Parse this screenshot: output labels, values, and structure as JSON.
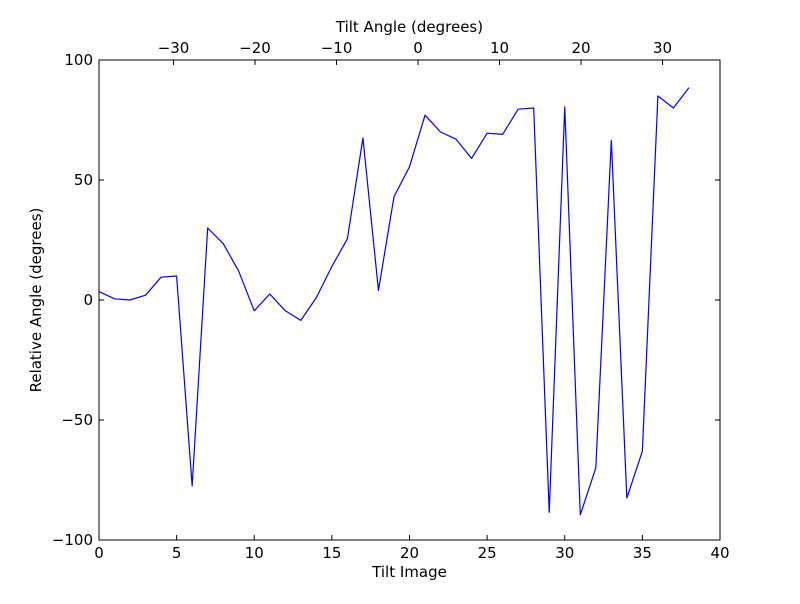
{
  "chart_data": {
    "type": "line",
    "xlabel": "Tilt Image",
    "ylabel": "Relative Angle (degrees)",
    "top_xlabel": "Tilt Angle (degrees)",
    "xlim": [
      0,
      40
    ],
    "ylim": [
      -100,
      100
    ],
    "x_ticks": [
      0,
      5,
      10,
      15,
      20,
      25,
      30,
      35,
      40
    ],
    "x_tick_labels": [
      "0",
      "5",
      "10",
      "15",
      "20",
      "25",
      "30",
      "35",
      "40"
    ],
    "y_ticks": [
      -100,
      -50,
      0,
      50,
      100
    ],
    "y_tick_labels": [
      "−100",
      "−50",
      "0",
      "50",
      "100"
    ],
    "top_ticks": [
      -30,
      -20,
      -10,
      0,
      10,
      20,
      30
    ],
    "top_tick_labels": [
      "−30",
      "−20",
      "−10",
      "0",
      "10",
      "20",
      "30"
    ],
    "top_tick_positions_on_x": [
      4.8,
      10.05,
      15.3,
      20.55,
      25.8,
      31.05,
      36.3
    ],
    "grid": false,
    "series": [
      {
        "color": "#0000ff",
        "x": [
          0,
          1,
          2,
          3,
          4,
          5,
          6,
          7,
          8,
          9,
          10,
          11,
          12,
          13,
          14,
          15,
          16,
          17,
          18,
          19,
          20,
          21,
          22,
          23,
          24,
          25,
          26,
          27,
          28,
          29,
          30,
          31,
          32,
          33,
          34,
          35,
          36,
          37,
          38
        ],
        "y": [
          3.5,
          0.5,
          0,
          2,
          9.5,
          10,
          -77.5,
          30,
          23.5,
          12,
          -4.5,
          2.5,
          -4.5,
          -8.5,
          1,
          14,
          25.5,
          67.5,
          4,
          43,
          55.5,
          77,
          70,
          67,
          59,
          69.5,
          69,
          79.5,
          80,
          -88.5,
          80.5,
          -89.5,
          -70,
          66.5,
          -82.5,
          -63,
          85,
          80,
          88.5
        ]
      }
    ]
  }
}
